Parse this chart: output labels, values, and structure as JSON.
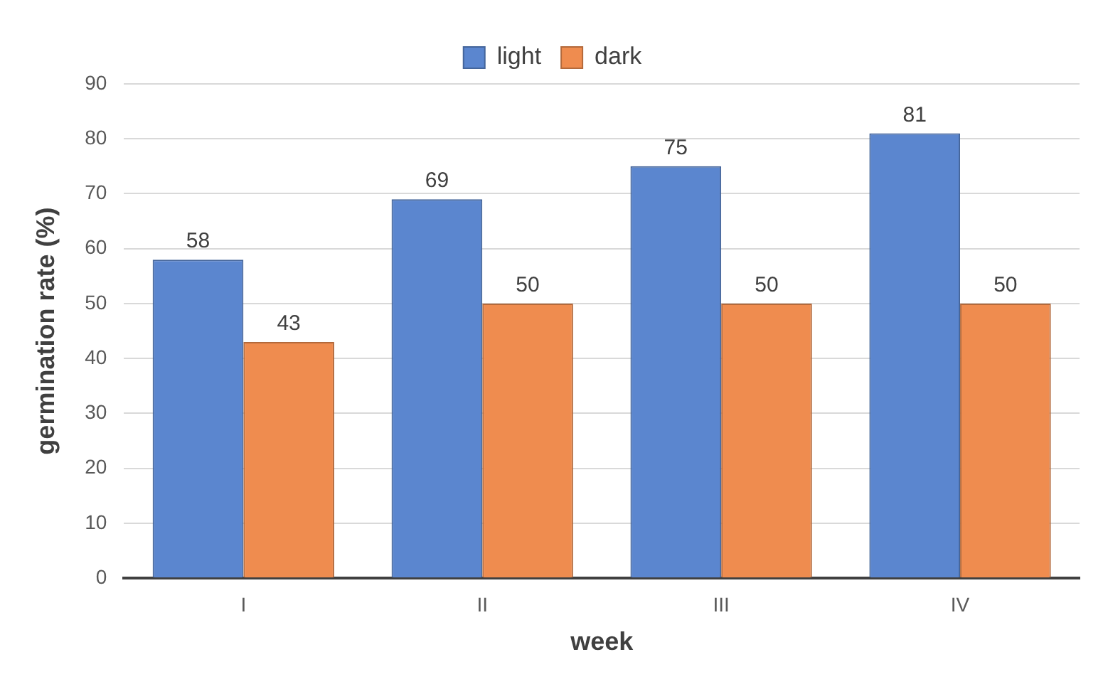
{
  "chart_data": {
    "type": "bar",
    "xlabel": "week",
    "ylabel": "germination rate (%)",
    "categories": [
      "I",
      "II",
      "III",
      "IV"
    ],
    "series": [
      {
        "name": "light",
        "color": "#5b86cf",
        "values": [
          58,
          69,
          75,
          81
        ]
      },
      {
        "name": "dark",
        "color": "#ef8c4f",
        "values": [
          43,
          50,
          50,
          50
        ]
      }
    ],
    "ylim": [
      0,
      90
    ],
    "yticks": [
      0,
      10,
      20,
      30,
      40,
      50,
      60,
      70,
      80,
      90
    ],
    "grid": "y",
    "legend": "top",
    "data_labels": true
  }
}
